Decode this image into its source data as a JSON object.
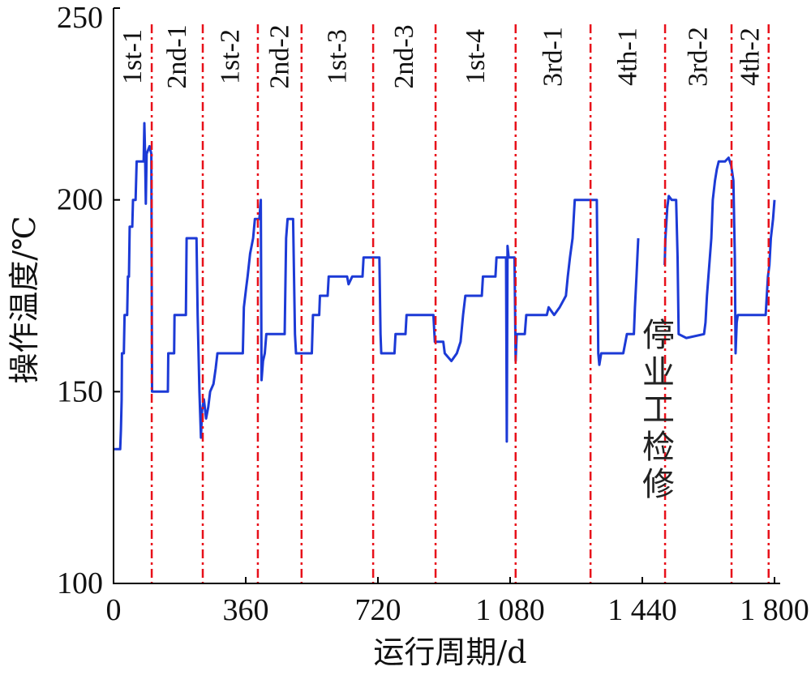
{
  "chart_data": {
    "type": "line",
    "xlabel": "运行周期/d",
    "ylabel": "操作温度/℃",
    "xlim": [
      0,
      1800
    ],
    "ylim": [
      100,
      250
    ],
    "grid": false,
    "xticks": [
      {
        "value": 0,
        "label": "0"
      },
      {
        "value": 360,
        "label": "360"
      },
      {
        "value": 720,
        "label": "720"
      },
      {
        "value": 1080,
        "label": "1 080"
      },
      {
        "value": 1440,
        "label": "1 440"
      },
      {
        "value": 1800,
        "label": "1 800"
      }
    ],
    "yticks": [
      {
        "value": 100,
        "label": "100"
      },
      {
        "value": 150,
        "label": "150"
      },
      {
        "value": 200,
        "label": "200"
      },
      {
        "value": 250,
        "label": "250"
      }
    ],
    "series": [
      {
        "color": "#1c3ad6",
        "segments": [
          [
            [
              0,
              135
            ],
            [
              18,
              135
            ],
            [
              20,
              140
            ],
            [
              22,
              148
            ],
            [
              23,
              160
            ],
            [
              28,
              160
            ],
            [
              30,
              170
            ],
            [
              37,
              170
            ],
            [
              39,
              180
            ],
            [
              42,
              180
            ],
            [
              44,
              193
            ],
            [
              51,
              193
            ],
            [
              53,
              200
            ],
            [
              60,
              200
            ],
            [
              63,
              210
            ],
            [
              82,
              210
            ],
            [
              84,
              220
            ],
            [
              86,
              212
            ],
            [
              88,
              199
            ],
            [
              90,
              212
            ],
            [
              98,
              214
            ],
            [
              103,
              212
            ],
            [
              105,
              150
            ],
            [
              148,
              150
            ],
            [
              149,
              160
            ],
            [
              165,
              160
            ],
            [
              166,
              170
            ],
            [
              197,
              170
            ],
            [
              199,
              190
            ],
            [
              226,
              190
            ],
            [
              229,
              170
            ],
            [
              234,
              150
            ],
            [
              238,
              138
            ],
            [
              241,
              145
            ],
            [
              246,
              148
            ],
            [
              252,
              143
            ],
            [
              258,
              146
            ],
            [
              263,
              150
            ],
            [
              272,
              152
            ],
            [
              278,
              156
            ],
            [
              283,
              160
            ],
            [
              352,
              160
            ],
            [
              355,
              172
            ],
            [
              361,
              177
            ],
            [
              365,
              180
            ],
            [
              372,
              186
            ],
            [
              380,
              190
            ],
            [
              385,
              195
            ],
            [
              397,
              195
            ],
            [
              401,
              200
            ],
            [
              403,
              153
            ],
            [
              407,
              158
            ],
            [
              412,
              160
            ],
            [
              416,
              165
            ],
            [
              466,
              165
            ],
            [
              470,
              190
            ],
            [
              474,
              195
            ],
            [
              489,
              195
            ],
            [
              494,
              165
            ],
            [
              497,
              160
            ],
            [
              540,
              160
            ],
            [
              543,
              170
            ],
            [
              560,
              170
            ],
            [
              562,
              175
            ],
            [
              583,
              175
            ],
            [
              586,
              180
            ],
            [
              636,
              180
            ],
            [
              640,
              178
            ],
            [
              650,
              180
            ],
            [
              678,
              180
            ],
            [
              681,
              185
            ],
            [
              724,
              185
            ],
            [
              727,
              165
            ],
            [
              729,
              160
            ],
            [
              765,
              160
            ],
            [
              768,
              165
            ],
            [
              795,
              165
            ],
            [
              798,
              170
            ],
            [
              871,
              170
            ],
            [
              875,
              163
            ],
            [
              898,
              163
            ],
            [
              902,
              160
            ],
            [
              920,
              158
            ],
            [
              935,
              160
            ],
            [
              945,
              163
            ],
            [
              952,
              170
            ],
            [
              958,
              175
            ],
            [
              1003,
              175
            ],
            [
              1006,
              180
            ],
            [
              1040,
              180
            ],
            [
              1043,
              185
            ],
            [
              1069,
              185
            ],
            [
              1071,
              137
            ],
            [
              1073,
              188
            ],
            [
              1076,
              185
            ],
            [
              1092,
              185
            ],
            [
              1095,
              158
            ],
            [
              1098,
              165
            ],
            [
              1120,
              165
            ],
            [
              1124,
              170
            ],
            [
              1180,
              170
            ],
            [
              1185,
              172
            ],
            [
              1200,
              170
            ],
            [
              1215,
              172
            ],
            [
              1232,
              175
            ],
            [
              1237,
              180
            ],
            [
              1243,
              185
            ],
            [
              1250,
              190
            ],
            [
              1256,
              200
            ],
            [
              1316,
              200
            ],
            [
              1320,
              160
            ],
            [
              1323,
              157
            ],
            [
              1328,
              160
            ],
            [
              1388,
              160
            ],
            [
              1394,
              163
            ],
            [
              1398,
              165
            ],
            [
              1417,
              165
            ],
            [
              1420,
              172
            ],
            [
              1424,
              180
            ],
            [
              1429,
              190
            ]
          ],
          [
            [
              1501,
              183
            ],
            [
              1503,
              190
            ],
            [
              1508,
              198
            ],
            [
              1512,
              201
            ],
            [
              1520,
              200
            ],
            [
              1532,
              200
            ],
            [
              1536,
              185
            ],
            [
              1539,
              165
            ],
            [
              1560,
              164
            ],
            [
              1608,
              165
            ],
            [
              1612,
              168
            ],
            [
              1616,
              175
            ],
            [
              1620,
              180
            ],
            [
              1624,
              185
            ],
            [
              1628,
              190
            ],
            [
              1632,
              200
            ],
            [
              1638,
              205
            ],
            [
              1643,
              208
            ],
            [
              1648,
              210
            ],
            [
              1665,
              210
            ],
            [
              1675,
              211
            ],
            [
              1682,
              209
            ],
            [
              1688,
              205
            ],
            [
              1692,
              185
            ],
            [
              1694,
              160
            ],
            [
              1697,
              168
            ],
            [
              1700,
              170
            ],
            [
              1720,
              170
            ],
            [
              1776,
              170
            ],
            [
              1779,
              175
            ],
            [
              1782,
              180
            ],
            [
              1786,
              183
            ],
            [
              1790,
              190
            ],
            [
              1796,
              195
            ],
            [
              1800,
              200
            ]
          ]
        ]
      }
    ],
    "boundary_color": "#e8101a",
    "periods": [
      {
        "label": "1st-1",
        "start": 0,
        "end": 104
      },
      {
        "label": "2nd-1",
        "start": 104,
        "end": 243
      },
      {
        "label": "1st-2",
        "start": 243,
        "end": 393
      },
      {
        "label": "2nd-2",
        "start": 393,
        "end": 512
      },
      {
        "label": "1st-3",
        "start": 512,
        "end": 707
      },
      {
        "label": "2nd-3",
        "start": 707,
        "end": 877
      },
      {
        "label": "1st-4",
        "start": 877,
        "end": 1095
      },
      {
        "label": "3rd-1",
        "start": 1095,
        "end": 1299
      },
      {
        "label": "4th-1",
        "start": 1299,
        "end": 1502
      },
      {
        "label": "3rd-2",
        "start": 1502,
        "end": 1683
      },
      {
        "label": "4th-2",
        "start": 1683,
        "end": 1784
      }
    ],
    "annotation": {
      "text": "停业工检修"
    }
  }
}
